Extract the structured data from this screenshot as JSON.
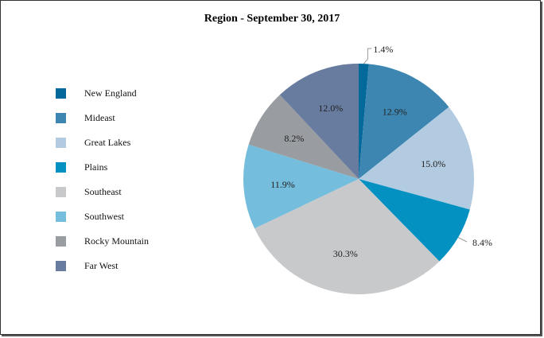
{
  "chart_data": {
    "type": "pie",
    "title": "Region - September 30, 2017",
    "categories": [
      "New England",
      "Mideast",
      "Great Lakes",
      "Plains",
      "Southeast",
      "Southwest",
      "Rocky Mountain",
      "Far West"
    ],
    "values": [
      1.4,
      12.9,
      15.0,
      8.4,
      30.3,
      11.9,
      8.2,
      12.0
    ],
    "labels": [
      "1.4%",
      "12.9%",
      "15.0%",
      "8.4%",
      "30.3%",
      "11.9%",
      "8.2%",
      "12.0%"
    ],
    "colors": [
      "#03699a",
      "#3d86b2",
      "#b3cbe1",
      "#0391c2",
      "#c8c9cb",
      "#74bddc",
      "#999ca1",
      "#687ca0"
    ],
    "legend_position": "left",
    "start_angle_deg": 0,
    "direction": "clockwise",
    "unit": "%"
  }
}
